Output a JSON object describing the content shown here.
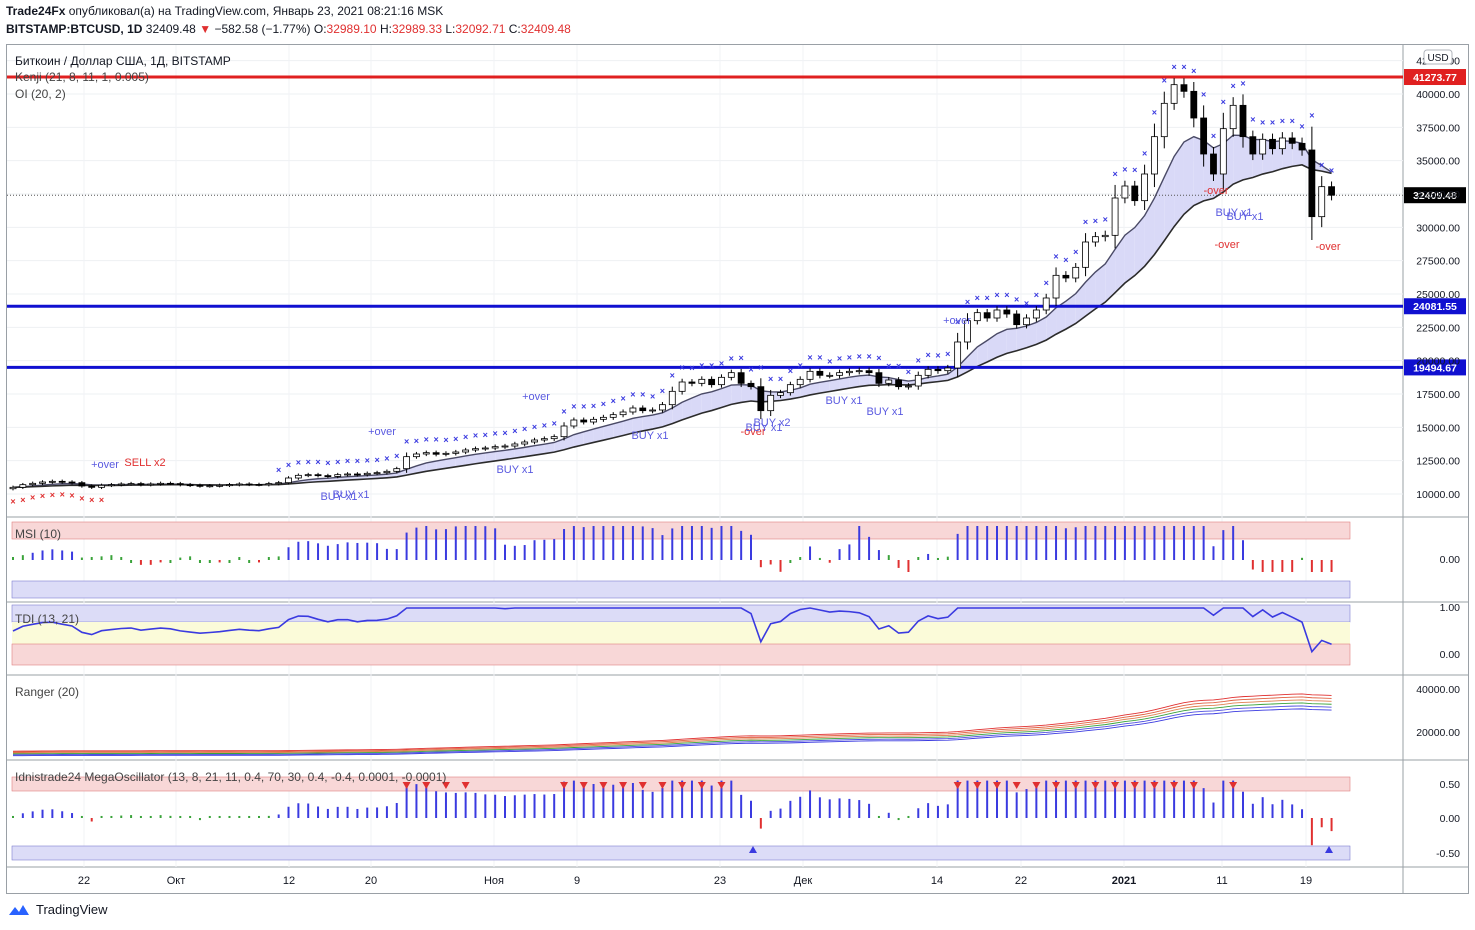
{
  "header": {
    "publisher": "Trade24Fx",
    "published_text": "опубликовал(а) на TradingView.com, Январь 23, 2021 08:21:16 MSK",
    "symbol": "BITSTAMP:BTCUSD, 1D",
    "last": "32409.48",
    "change": "−582.58 (−1.77%)",
    "o_label": "O:",
    "o": "32989.10",
    "h_label": "H:",
    "h": "32989.33",
    "l_label": "L:",
    "l": "32092.71",
    "c_label": "C:",
    "c": "32409.48"
  },
  "legend": {
    "title": "Биткоин / Доллар США, 1Д, BITSTAMP",
    "kenji": "Kenji (21, 8, 11, 1, 0.005)",
    "oi": "OI (20, 2)",
    "msi": "MSI (10)",
    "tdi": "TDI (13, 21)",
    "ranger": "Ranger (20)",
    "mega": "Idnistrade24 MegaOscillator (13, 8, 21, 11, 0.4, 70, 30, 0.4, -0.4, 0.0001, -0.0001)"
  },
  "price_axis": {
    "currency": "USD",
    "ticks": [
      "42500.00",
      "40000.00",
      "37500.00",
      "35000.00",
      "32500.00",
      "30000.00",
      "27500.00",
      "25000.00",
      "22500.00",
      "20000.00",
      "17500.00",
      "15000.00",
      "12500.00",
      "10000.00"
    ]
  },
  "price_lines": [
    {
      "label": "41273.77",
      "value": 41273.77,
      "color": "#e02020"
    },
    {
      "label": "24081.55",
      "value": 24081.55,
      "color": "#1010d0"
    },
    {
      "label": "19494.67",
      "value": 19494.67,
      "color": "#1010d0"
    }
  ],
  "last_price_label": "32409.48",
  "indicator_axes": {
    "msi": [
      "0.00"
    ],
    "tdi": [
      "1.00",
      "0.00"
    ],
    "ranger": [
      "40000.00",
      "20000.00"
    ],
    "mega": [
      "0.50",
      "0.00",
      "-0.50"
    ]
  },
  "time_axis": [
    "22",
    "Окт",
    "12",
    "20",
    "Ноя",
    "9",
    "23",
    "Дек",
    "14",
    "22",
    "2021",
    "11",
    "19"
  ],
  "signals": [
    {
      "text": "+over"
    },
    {
      "text": "SELL x2"
    },
    {
      "text": "BUY x1"
    },
    {
      "text": "BUY x1"
    },
    {
      "text": "+over"
    },
    {
      "text": "BUY x1"
    },
    {
      "text": "+over"
    },
    {
      "text": "BUY x1"
    },
    {
      "text": "-over"
    },
    {
      "text": "BUY x1"
    },
    {
      "text": "BUY x2"
    },
    {
      "text": "BUY x1"
    },
    {
      "text": "BUY x1"
    },
    {
      "text": "+over"
    },
    {
      "text": "-over"
    },
    {
      "text": "BUY x1"
    },
    {
      "text": "BUY x1"
    },
    {
      "text": "-over"
    },
    {
      "text": "-over"
    }
  ],
  "colors": {
    "bull": "#ffffff",
    "bear": "#000000",
    "cross": "#3a3ae0",
    "cross_red": "#e03030",
    "cloud_bull": "#d9d9f7",
    "cloud_bear": "#d6efd6",
    "msi_bull": "#3a3ae0",
    "msi_bear": "#e03030",
    "msi_neutral": "#3aa33a"
  },
  "chart_data": {
    "type": "candlestick",
    "symbol": "BITSTAMP:BTCUSD",
    "timeframe": "1D",
    "ylim": [
      8500,
      43500
    ],
    "closes": [
      10500,
      10700,
      10800,
      10900,
      10950,
      10900,
      10850,
      10600,
      10500,
      10650,
      10700,
      10750,
      10780,
      10700,
      10750,
      10800,
      10780,
      10700,
      10650,
      10600,
      10620,
      10650,
      10700,
      10750,
      10720,
      10700,
      10780,
      10850,
      11200,
      11400,
      11450,
      11380,
      11320,
      11450,
      11500,
      11450,
      11550,
      11600,
      11700,
      11900,
      12800,
      13000,
      13100,
      12980,
      13050,
      13150,
      13300,
      13400,
      13450,
      13550,
      13600,
      13750,
      13900,
      14050,
      14150,
      14300,
      15100,
      15550,
      15400,
      15600,
      15750,
      15950,
      16150,
      16450,
      16250,
      16300,
      16700,
      17700,
      18400,
      18300,
      18600,
      18200,
      18750,
      19100,
      18300,
      18050,
      16250,
      17400,
      17600,
      18200,
      18600,
      19200,
      18900,
      18900,
      19100,
      19200,
      19250,
      19100,
      18300,
      18550,
      18050,
      18100,
      18900,
      19350,
      19250,
      19450,
      21400,
      23000,
      23600,
      23200,
      23800,
      23500,
      22700,
      23200,
      23800,
      24700,
      26400,
      26200,
      27000,
      28900,
      29300,
      29400,
      32200,
      33100,
      32000,
      34000,
      36800,
      39300,
      40700,
      40200,
      38200,
      35500,
      34000,
      37400,
      39150,
      36800,
      35500,
      36600,
      35900,
      36700,
      36300,
      35800,
      30800,
      33050,
      32410
    ],
    "ema_fast_end": 33900,
    "ema_slow_end": 33200,
    "resistance": 41273.77,
    "supports": [
      24081.55,
      19494.67
    ],
    "last_close": 32409.48
  }
}
